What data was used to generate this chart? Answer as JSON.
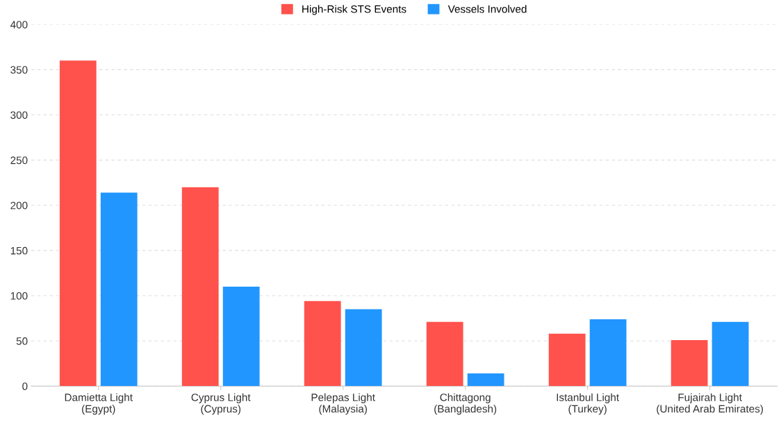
{
  "chart_data": {
    "type": "bar",
    "categories": [
      "Damietta Light\n(Egypt)",
      "Cyprus Light\n(Cyprus)",
      "Pelepas Light\n(Malaysia)",
      "Chittagong\n(Bangladesh)",
      "Istanbul Light\n(Turkey)",
      "Fujairah Light\n(United Arab Emirates)"
    ],
    "series": [
      {
        "name": "High-Risk STS Events",
        "color": "#ff524c",
        "values": [
          360,
          220,
          94,
          71,
          58,
          51
        ]
      },
      {
        "name": "Vessels Involved",
        "color": "#2196ff",
        "values": [
          214,
          110,
          85,
          14,
          74,
          71
        ]
      }
    ],
    "ylim": [
      0,
      400
    ],
    "yticks": [
      0,
      50,
      100,
      150,
      200,
      250,
      300,
      350,
      400
    ],
    "grid": "y",
    "legend": "top"
  }
}
